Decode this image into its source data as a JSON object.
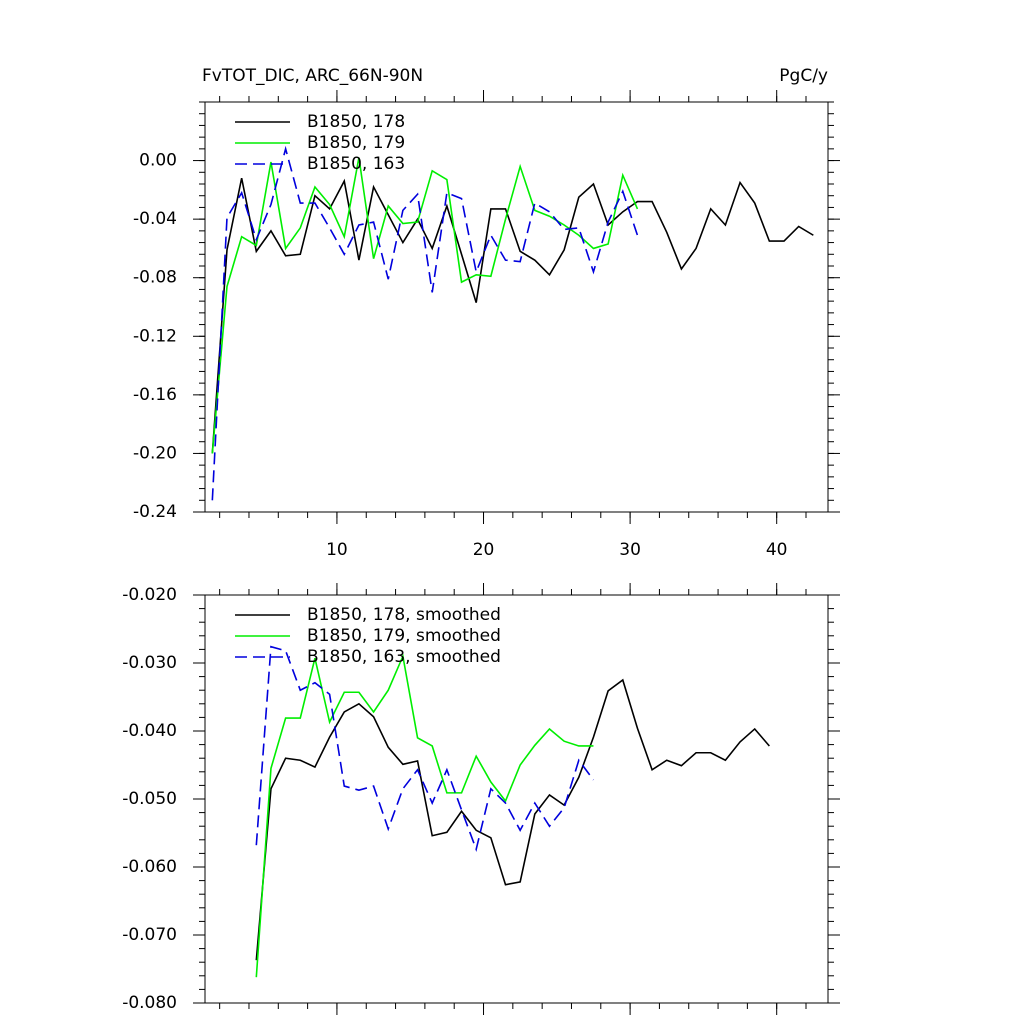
{
  "chart_data": [
    {
      "type": "line",
      "title": "FvTOT_DIC, ARC_66N-90N",
      "units": "PgC/y",
      "xlim": [
        1,
        43.5
      ],
      "xticks": [
        10,
        20,
        30,
        40
      ],
      "show_xtick_labels": true,
      "ylim": [
        -0.24,
        0.04
      ],
      "yticks": [
        {
          "value": -0.24,
          "label": "-0.24"
        },
        {
          "value": -0.2,
          "label": "-0.20"
        },
        {
          "value": -0.16,
          "label": "-0.16"
        },
        {
          "value": -0.12,
          "label": "-0.12"
        },
        {
          "value": -0.08,
          "label": "-0.08"
        },
        {
          "value": -0.04,
          "label": "-0.04"
        },
        {
          "value": 0,
          "label": "0.00"
        }
      ],
      "legend": "top-left",
      "series": [
        {
          "name": "B1850, 178",
          "color": "#000000",
          "dash": false,
          "x": [
            1.5,
            2.5,
            3.5,
            4.5,
            5.5,
            6.5,
            7.5,
            8.5,
            9.5,
            10.5,
            11.5,
            12.5,
            13.5,
            14.5,
            15.5,
            16.5,
            17.5,
            18.5,
            19.5,
            20.5,
            21.5,
            22.5,
            23.5,
            24.5,
            25.5,
            26.5,
            27.5,
            28.5,
            29.5,
            30.5,
            31.5,
            32.5,
            33.5,
            34.5,
            35.5,
            36.5,
            37.5,
            38.5,
            39.5,
            40.5,
            41.5,
            42.5
          ],
          "values": [
            -0.2,
            -0.061,
            -0.012,
            -0.062,
            -0.048,
            -0.065,
            -0.064,
            -0.024,
            -0.033,
            -0.014,
            -0.068,
            -0.018,
            -0.037,
            -0.056,
            -0.04,
            -0.06,
            -0.031,
            -0.064,
            -0.097,
            -0.033,
            -0.033,
            -0.062,
            -0.068,
            -0.078,
            -0.061,
            -0.025,
            -0.016,
            -0.044,
            -0.035,
            -0.028,
            -0.028,
            -0.049,
            -0.074,
            -0.06,
            -0.033,
            -0.044,
            -0.015,
            -0.029,
            -0.055,
            -0.055,
            -0.045,
            -0.051
          ]
        },
        {
          "name": "B1850, 179",
          "color": "#00ee00",
          "dash": false,
          "x": [
            1.5,
            2.5,
            3.5,
            4.5,
            5.5,
            6.5,
            7.5,
            8.5,
            9.5,
            10.5,
            11.5,
            12.5,
            13.5,
            14.5,
            15.5,
            16.5,
            17.5,
            18.5,
            19.5,
            20.5,
            21.5,
            22.5,
            23.5,
            24.5,
            25.5,
            26.5,
            27.5,
            28.5,
            29.5,
            30.5
          ],
          "values": [
            -0.2,
            -0.086,
            -0.052,
            -0.058,
            -0.001,
            -0.06,
            -0.046,
            -0.018,
            -0.03,
            -0.052,
            0.002,
            -0.067,
            -0.031,
            -0.043,
            -0.042,
            -0.007,
            -0.013,
            -0.083,
            -0.078,
            -0.079,
            -0.04,
            -0.004,
            -0.034,
            -0.038,
            -0.044,
            -0.051,
            -0.06,
            -0.057,
            -0.01,
            -0.033
          ]
        },
        {
          "name": "B1850, 163",
          "color": "#0000dd",
          "dash": true,
          "x": [
            1.5,
            2.5,
            3.5,
            4.5,
            5.5,
            6.5,
            7.5,
            8.5,
            9.5,
            10.5,
            11.5,
            12.5,
            13.5,
            14.5,
            15.5,
            16.5,
            17.5,
            18.5,
            19.5,
            20.5,
            21.5,
            22.5,
            23.5,
            24.5,
            25.5,
            26.5,
            27.5,
            28.5,
            29.5,
            30.5
          ],
          "values": [
            -0.232,
            -0.039,
            -0.022,
            -0.054,
            -0.03,
            0.008,
            -0.029,
            -0.029,
            -0.046,
            -0.064,
            -0.044,
            -0.042,
            -0.081,
            -0.034,
            -0.023,
            -0.09,
            -0.022,
            -0.026,
            -0.076,
            -0.051,
            -0.068,
            -0.069,
            -0.029,
            -0.035,
            -0.047,
            -0.046,
            -0.076,
            -0.042,
            -0.021,
            -0.051
          ]
        }
      ]
    },
    {
      "type": "line",
      "xlim": [
        1,
        43.5
      ],
      "xticks": [
        10,
        20,
        30,
        40
      ],
      "show_xtick_labels": false,
      "ylim": [
        -0.08,
        -0.02
      ],
      "yticks": [
        {
          "value": -0.08,
          "label": "-0.080"
        },
        {
          "value": -0.07,
          "label": "-0.070"
        },
        {
          "value": -0.06,
          "label": "-0.060"
        },
        {
          "value": -0.05,
          "label": "-0.050"
        },
        {
          "value": -0.04,
          "label": "-0.040"
        },
        {
          "value": -0.03,
          "label": "-0.030"
        },
        {
          "value": -0.02,
          "label": "-0.020"
        }
      ],
      "legend": "top-left",
      "series": [
        {
          "name": "B1850, 178, smoothed",
          "color": "#000000",
          "dash": false,
          "x": [
            4.5,
            5.5,
            6.5,
            7.5,
            8.5,
            9.5,
            10.5,
            11.5,
            12.5,
            13.5,
            14.5,
            15.5,
            16.5,
            17.5,
            18.5,
            19.5,
            20.5,
            21.5,
            22.5,
            23.5,
            24.5,
            25.5,
            26.5,
            27.5,
            28.5,
            29.5,
            30.5,
            31.5,
            32.5,
            33.5,
            34.5,
            35.5,
            36.5,
            37.5,
            38.5,
            39.5
          ],
          "values": [
            -0.0737,
            -0.0485,
            -0.044,
            -0.0443,
            -0.0453,
            -0.0409,
            -0.0372,
            -0.036,
            -0.0379,
            -0.0424,
            -0.0449,
            -0.0444,
            -0.0554,
            -0.0549,
            -0.0518,
            -0.0546,
            -0.0557,
            -0.0626,
            -0.0622,
            -0.0522,
            -0.0494,
            -0.0509,
            -0.0468,
            -0.0409,
            -0.0341,
            -0.0325,
            -0.0396,
            -0.0457,
            -0.0443,
            -0.0451,
            -0.0432,
            -0.0432,
            -0.0443,
            -0.0416,
            -0.0397,
            -0.0422
          ]
        },
        {
          "name": "B1850, 179, smoothed",
          "color": "#00ee00",
          "dash": false,
          "x": [
            4.5,
            5.5,
            6.5,
            7.5,
            8.5,
            9.5,
            10.5,
            11.5,
            12.5,
            13.5,
            14.5,
            15.5,
            16.5,
            17.5,
            18.5,
            19.5,
            20.5,
            21.5,
            22.5,
            23.5,
            24.5,
            25.5,
            26.5,
            27.5
          ],
          "values": [
            -0.0762,
            -0.0455,
            -0.0381,
            -0.0381,
            -0.0293,
            -0.0387,
            -0.0343,
            -0.0343,
            -0.0372,
            -0.034,
            -0.029,
            -0.041,
            -0.0422,
            -0.0491,
            -0.0491,
            -0.0437,
            -0.0475,
            -0.0503,
            -0.045,
            -0.0421,
            -0.0397,
            -0.0415,
            -0.0422,
            -0.0422
          ]
        },
        {
          "name": "B1850, 163, smoothed",
          "color": "#0000dd",
          "dash": true,
          "x": [
            4.5,
            5.5,
            6.5,
            7.5,
            8.5,
            9.5,
            10.5,
            11.5,
            12.5,
            13.5,
            14.5,
            15.5,
            16.5,
            17.5,
            18.5,
            19.5,
            20.5,
            21.5,
            22.5,
            23.5,
            24.5,
            25.5,
            26.5,
            27.5
          ],
          "values": [
            -0.0568,
            -0.0276,
            -0.0282,
            -0.034,
            -0.0329,
            -0.0346,
            -0.0481,
            -0.0487,
            -0.0481,
            -0.0544,
            -0.0485,
            -0.0457,
            -0.0506,
            -0.0457,
            -0.0516,
            -0.0574,
            -0.0485,
            -0.0506,
            -0.0546,
            -0.0506,
            -0.054,
            -0.0513,
            -0.0443,
            -0.0472
          ]
        }
      ]
    }
  ]
}
